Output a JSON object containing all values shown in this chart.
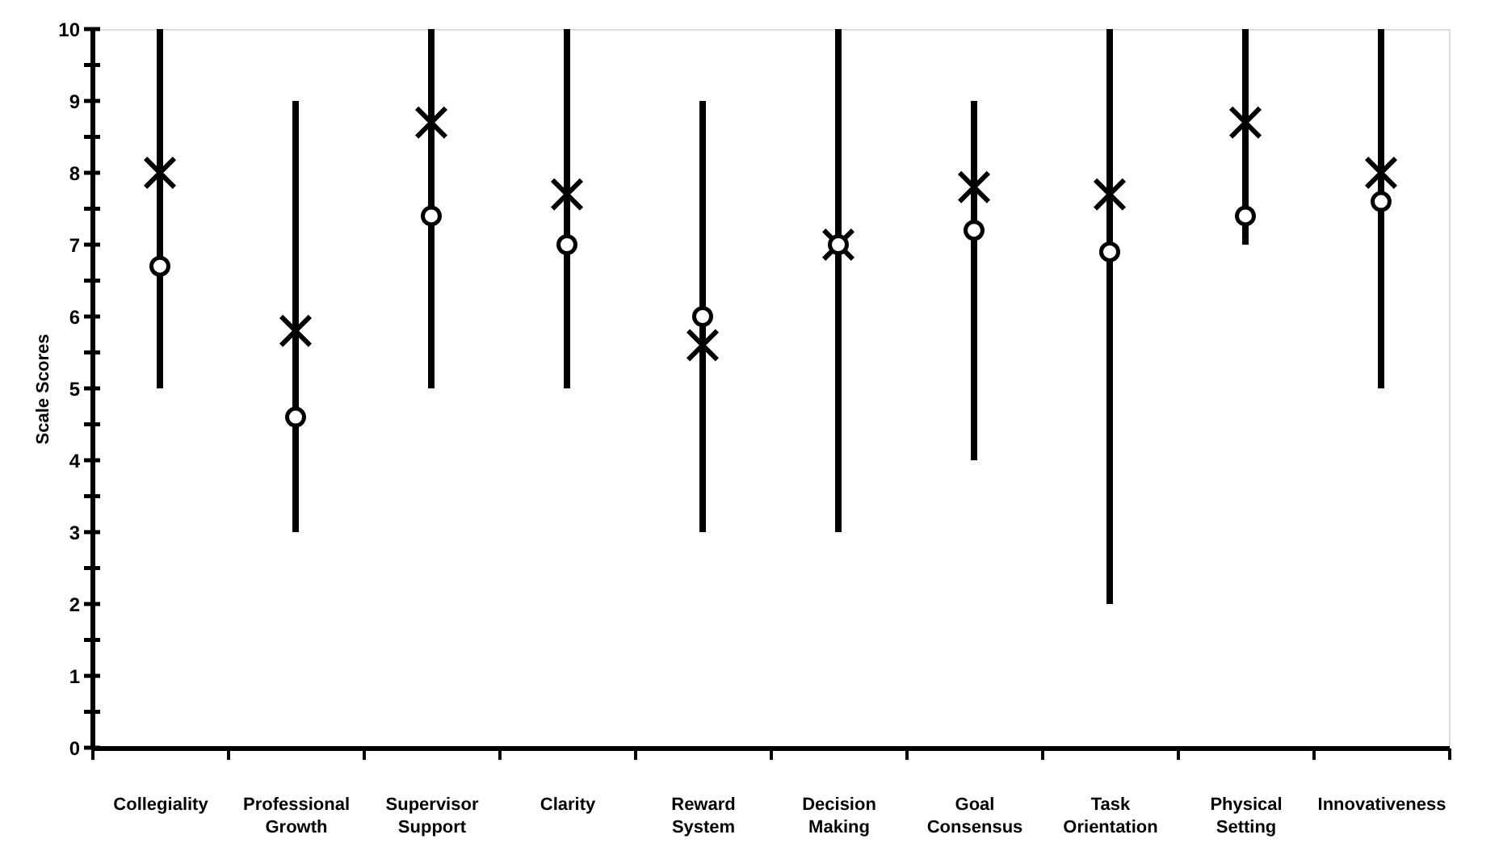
{
  "chart_data": {
    "type": "bar",
    "ylabel": "Scale Scores",
    "categories": [
      "Collegiality",
      "Professional Growth",
      "Supervisor Support",
      "Clarity",
      "Reward System",
      "Decision Making",
      "Goal Consensus",
      "Task Orientation",
      "Physical Setting",
      "Innovativeness"
    ],
    "series": [
      {
        "color": "#000000",
        "base": [
          5,
          3,
          5,
          5,
          3,
          3,
          4,
          2,
          7,
          5
        ],
        "values": [
          5,
          6,
          5,
          5,
          6,
          7,
          5,
          8,
          3,
          5
        ]
      },
      {
        "type": "scatter",
        "marker": "cross",
        "color": "#000000",
        "values": [
          8.0,
          5.8,
          8.7,
          7.7,
          5.6,
          7.0,
          7.8,
          7.7,
          8.7,
          8.0
        ]
      },
      {
        "type": "scatter",
        "marker": "circle",
        "color": "#000000",
        "values": [
          6.7,
          4.6,
          7.4,
          7.0,
          6.0,
          7.0,
          7.2,
          6.9,
          7.4,
          7.6
        ]
      }
    ],
    "ylim": [
      0,
      10
    ],
    "yticks": [
      0,
      {
        "value": 0.5,
        "label": null
      },
      1,
      {
        "value": 1.5,
        "label": null
      },
      2,
      {
        "value": 2.5,
        "label": null
      },
      3,
      {
        "value": 3.5,
        "label": null
      },
      4,
      {
        "value": 4.5,
        "label": null
      },
      5,
      {
        "value": 5.5,
        "label": null
      },
      6,
      {
        "value": 6.5,
        "label": null
      },
      7,
      {
        "value": 7.5,
        "label": null
      },
      8,
      {
        "value": 8.5,
        "label": null
      },
      9,
      {
        "value": 9.5,
        "label": null
      },
      10
    ],
    "grid": false
  }
}
